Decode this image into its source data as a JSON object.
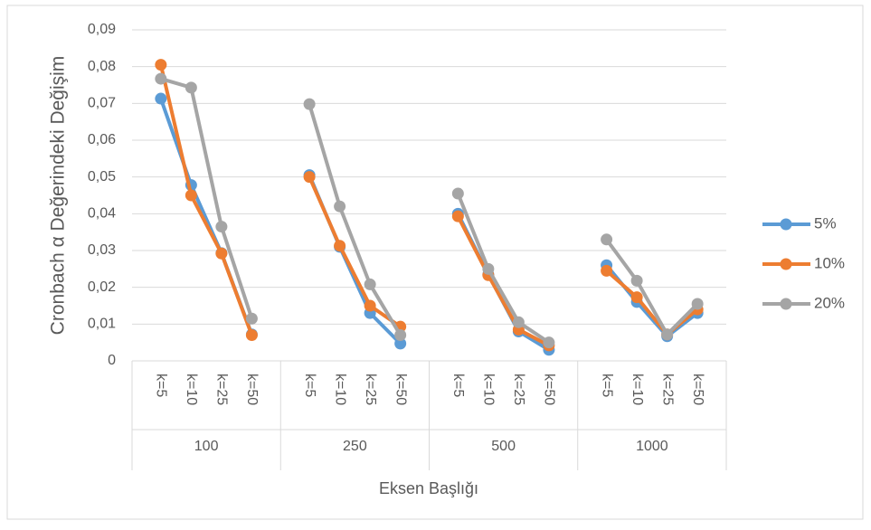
{
  "chart_data": {
    "type": "line",
    "y_title": "Cronbach α Değerindeki Değişim",
    "x_title": "Eksen Başlığı",
    "category_groups": [
      "100",
      "250",
      "500",
      "1000"
    ],
    "categories": [
      "k=5",
      "k=10",
      "k=25",
      "k=50",
      "k=5",
      "k=10",
      "k=25",
      "k=50",
      "k=5",
      "k=10",
      "k=25",
      "k=50",
      "k=5",
      "k=10",
      "k=25",
      "k=50"
    ],
    "series": [
      {
        "name": "5%",
        "color": "#5b9bd5",
        "values": [
          0.0713,
          0.0478,
          0.0293,
          0.0072,
          0.0505,
          0.031,
          0.013,
          0.0047,
          0.04,
          0.0235,
          0.008,
          0.003,
          0.026,
          0.016,
          0.0067,
          0.013
        ]
      },
      {
        "name": "10%",
        "color": "#ed7d31",
        "values": [
          0.0805,
          0.045,
          0.0292,
          0.007,
          0.05,
          0.0313,
          0.015,
          0.0093,
          0.0393,
          0.0233,
          0.0085,
          0.0042,
          0.0245,
          0.0173,
          0.0072,
          0.014
        ]
      },
      {
        "name": "20%",
        "color": "#a5a5a5",
        "values": [
          0.0767,
          0.0743,
          0.0365,
          0.0115,
          0.0698,
          0.042,
          0.0208,
          0.007,
          0.0455,
          0.025,
          0.0105,
          0.005,
          0.033,
          0.0218,
          0.0072,
          0.0155
        ]
      }
    ],
    "ylim": [
      0,
      0.09
    ],
    "yticks": [
      0,
      {
        "value": 0.01,
        "label": "0,01"
      },
      {
        "value": 0.02,
        "label": "0,02"
      },
      {
        "value": 0.03,
        "label": "0,03"
      },
      {
        "value": 0.04,
        "label": "0,04"
      },
      {
        "value": 0.05,
        "label": "0,05"
      },
      {
        "value": 0.06,
        "label": "0,06"
      },
      {
        "value": 0.07,
        "label": "0,07"
      },
      {
        "value": 0.08,
        "label": "0,08"
      },
      {
        "value": 0.09,
        "label": "0,09"
      }
    ],
    "grid": true,
    "legend": "right"
  }
}
